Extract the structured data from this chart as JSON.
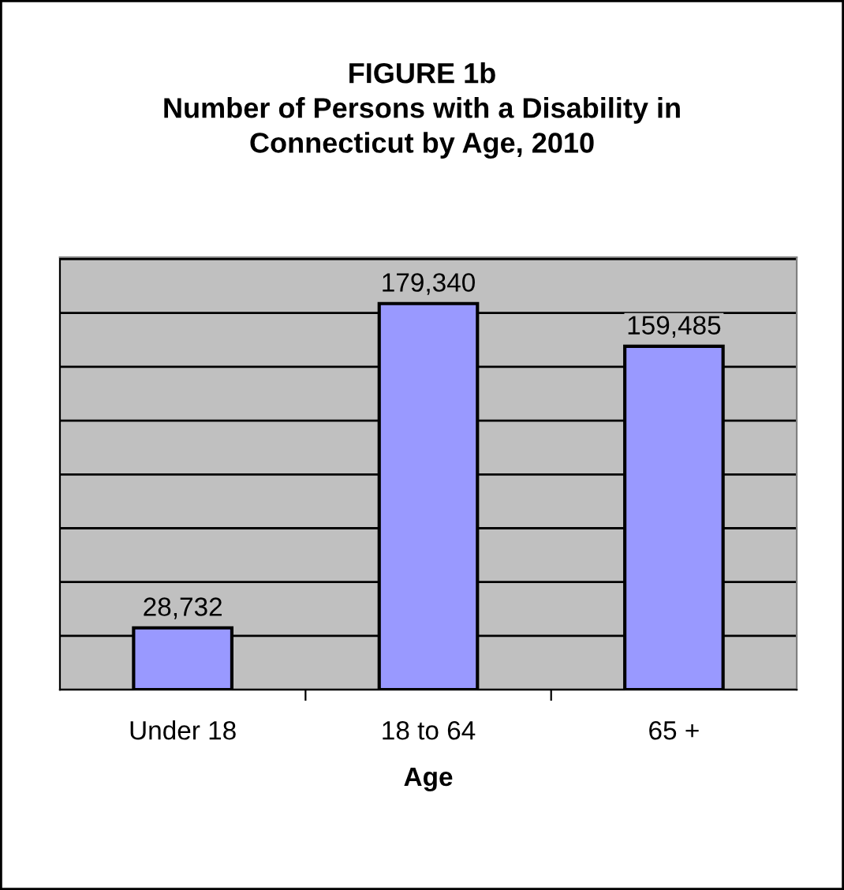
{
  "chart_data": {
    "type": "bar",
    "title": "FIGURE 1b\nNumber of Persons with a Disability in\nConnecticut by Age, 2010",
    "xlabel": "Age",
    "categories": [
      "Under 18",
      "18 to 64",
      "65 +"
    ],
    "series": [
      {
        "color": "#9999ff",
        "values": [
          28732,
          179340,
          159485
        ],
        "value_labels": [
          "28,732",
          "179,340",
          "159,485"
        ]
      }
    ],
    "grid": "y",
    "legend": false
  }
}
